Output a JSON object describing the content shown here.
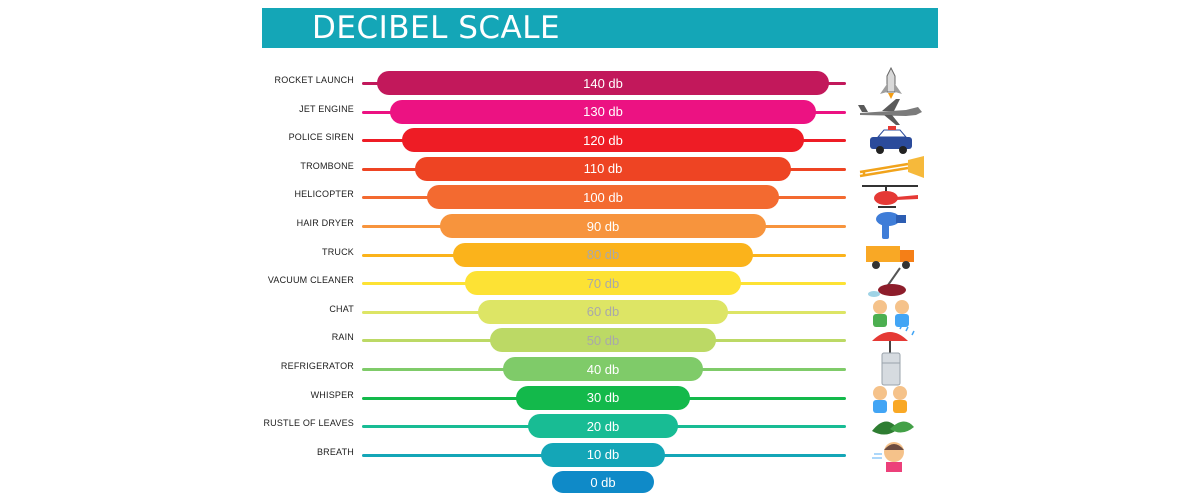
{
  "title": "DECIBEL SCALE",
  "rows": [
    {
      "label": "ROCKET LAUNCH",
      "value": "140 db",
      "color": "#c2185b",
      "icon": "rocket-icon"
    },
    {
      "label": "JET ENGINE",
      "value": "130 db",
      "color": "#ec1282",
      "icon": "jet-icon"
    },
    {
      "label": "POLICE SIREN",
      "value": "120 db",
      "color": "#ee1c25",
      "icon": "police-car-icon"
    },
    {
      "label": "TROMBONE",
      "value": "110 db",
      "color": "#ee4423",
      "icon": "trombone-icon"
    },
    {
      "label": "HELICOPTER",
      "value": "100 db",
      "color": "#f36a30",
      "icon": "helicopter-icon"
    },
    {
      "label": "HAIR DRYER",
      "value": "90 db",
      "color": "#f7943d",
      "icon": "hair-dryer-icon"
    },
    {
      "label": "TRUCK",
      "value": "80 db",
      "color": "#fbb31b",
      "icon": "truck-icon"
    },
    {
      "label": "VACUUM CLEANER",
      "value": "70 db",
      "color": "#fde234",
      "icon": "vacuum-cleaner-icon"
    },
    {
      "label": "CHAT",
      "value": "60 db",
      "color": "#dde565",
      "icon": "chat-icon"
    },
    {
      "label": "RAIN",
      "value": "50 db",
      "color": "#bcd965",
      "icon": "rain-umbrella-icon"
    },
    {
      "label": "REFRIGERATOR",
      "value": "40 db",
      "color": "#7fcb69",
      "icon": "refrigerator-icon"
    },
    {
      "label": "WHISPER",
      "value": "30 db",
      "color": "#13b94b",
      "icon": "whisper-icon"
    },
    {
      "label": "RUSTLE OF LEAVES",
      "value": "20 db",
      "color": "#18bc94",
      "icon": "leaves-icon"
    },
    {
      "label": "BREATH",
      "value": "10 db",
      "color": "#14a6b7",
      "icon": "breath-icon"
    }
  ],
  "zero": {
    "value": "0 db",
    "color": "#0f8ac8"
  }
}
